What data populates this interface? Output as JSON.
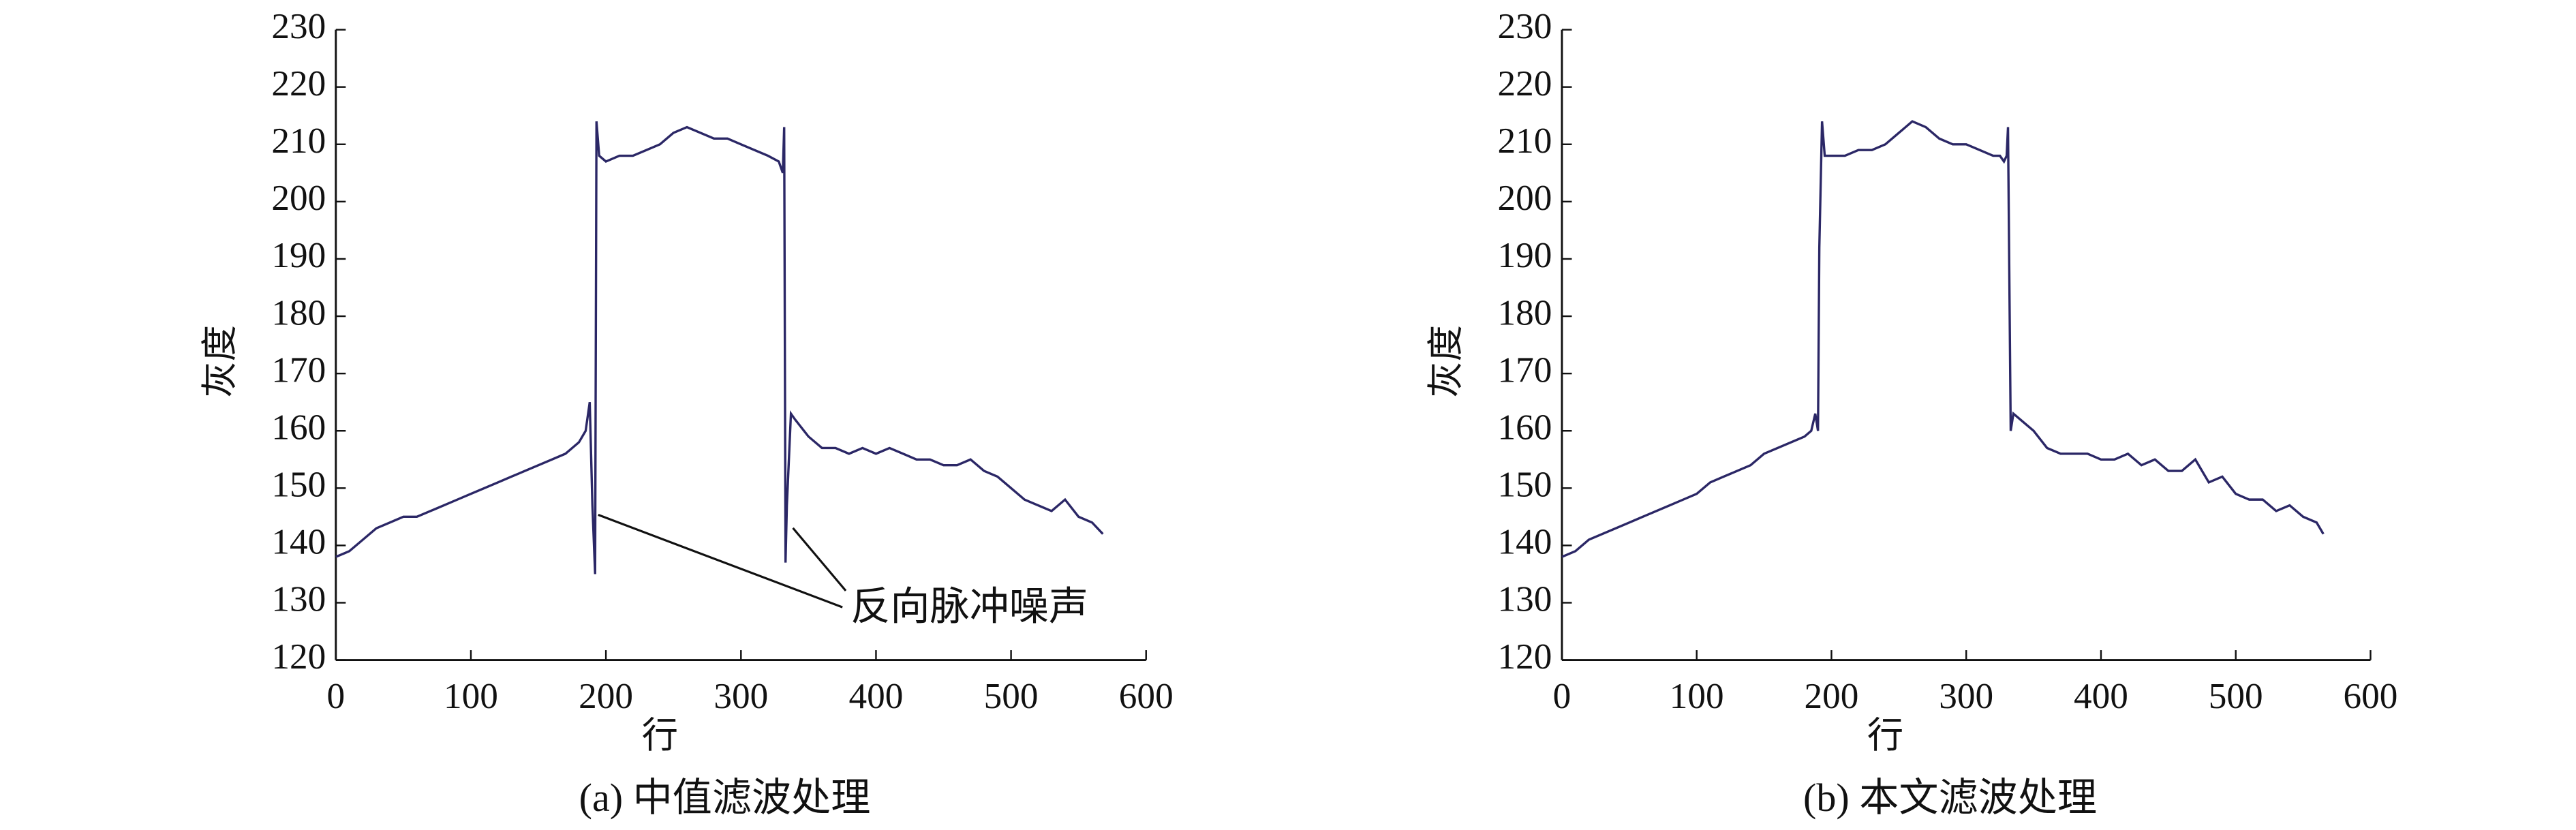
{
  "chart_data": [
    {
      "type": "line",
      "caption": "(a) 中值滤波处理",
      "x_label": "行",
      "y_label": "灰度",
      "annotation": "反向脉冲噪声",
      "color": "#2b2766",
      "xlim": [
        0,
        600
      ],
      "xticks": [
        0,
        100,
        200,
        300,
        400,
        500,
        600
      ],
      "ylim": [
        120,
        230
      ],
      "yticks": [
        120,
        130,
        140,
        150,
        160,
        170,
        180,
        190,
        200,
        210,
        220,
        230
      ],
      "x": [
        0,
        10,
        20,
        30,
        40,
        50,
        60,
        70,
        80,
        90,
        100,
        110,
        120,
        130,
        140,
        150,
        160,
        170,
        180,
        185,
        188,
        190,
        192,
        193,
        195,
        200,
        210,
        220,
        230,
        240,
        250,
        260,
        270,
        280,
        290,
        300,
        310,
        320,
        328,
        331,
        332,
        333,
        334,
        337,
        340,
        350,
        360,
        370,
        380,
        390,
        400,
        410,
        420,
        430,
        440,
        450,
        460,
        470,
        480,
        490,
        500,
        510,
        520,
        530,
        540,
        550,
        560,
        568
      ],
      "values": [
        138,
        139,
        141,
        143,
        144,
        145,
        145,
        146,
        147,
        148,
        149,
        150,
        151,
        152,
        153,
        154,
        155,
        156,
        158,
        160,
        165,
        147,
        135,
        214,
        208,
        207,
        208,
        208,
        209,
        210,
        212,
        213,
        212,
        211,
        211,
        210,
        209,
        208,
        207,
        205,
        213,
        137,
        147,
        163,
        162,
        159,
        157,
        157,
        156,
        157,
        156,
        157,
        156,
        155,
        155,
        154,
        154,
        155,
        153,
        152,
        150,
        148,
        147,
        146,
        148,
        145,
        144,
        142
      ]
    },
    {
      "type": "line",
      "caption": "(b) 本文滤波处理",
      "x_label": "行",
      "y_label": "灰度",
      "color": "#2b2766",
      "xlim": [
        0,
        600
      ],
      "xticks": [
        0,
        100,
        200,
        300,
        400,
        500,
        600
      ],
      "ylim": [
        120,
        230
      ],
      "yticks": [
        120,
        130,
        140,
        150,
        160,
        170,
        180,
        190,
        200,
        210,
        220,
        230
      ],
      "x": [
        0,
        10,
        20,
        30,
        40,
        50,
        60,
        70,
        80,
        90,
        100,
        110,
        120,
        130,
        140,
        150,
        160,
        170,
        180,
        185,
        188,
        190,
        191,
        193,
        195,
        200,
        210,
        220,
        230,
        240,
        250,
        260,
        270,
        280,
        290,
        300,
        310,
        320,
        325,
        328,
        330,
        331,
        333,
        335,
        340,
        350,
        360,
        370,
        380,
        390,
        400,
        410,
        420,
        430,
        440,
        450,
        460,
        470,
        480,
        490,
        500,
        510,
        520,
        530,
        540,
        550,
        560,
        565
      ],
      "values": [
        138,
        139,
        141,
        142,
        143,
        144,
        145,
        146,
        147,
        148,
        149,
        151,
        152,
        153,
        154,
        156,
        157,
        158,
        159,
        160,
        163,
        160,
        192,
        214,
        208,
        208,
        208,
        209,
        209,
        210,
        212,
        214,
        213,
        211,
        210,
        210,
        209,
        208,
        208,
        207,
        208,
        213,
        160,
        163,
        162,
        160,
        157,
        156,
        156,
        156,
        155,
        155,
        156,
        154,
        155,
        153,
        153,
        155,
        151,
        152,
        149,
        148,
        148,
        146,
        147,
        145,
        144,
        142
      ]
    }
  ]
}
